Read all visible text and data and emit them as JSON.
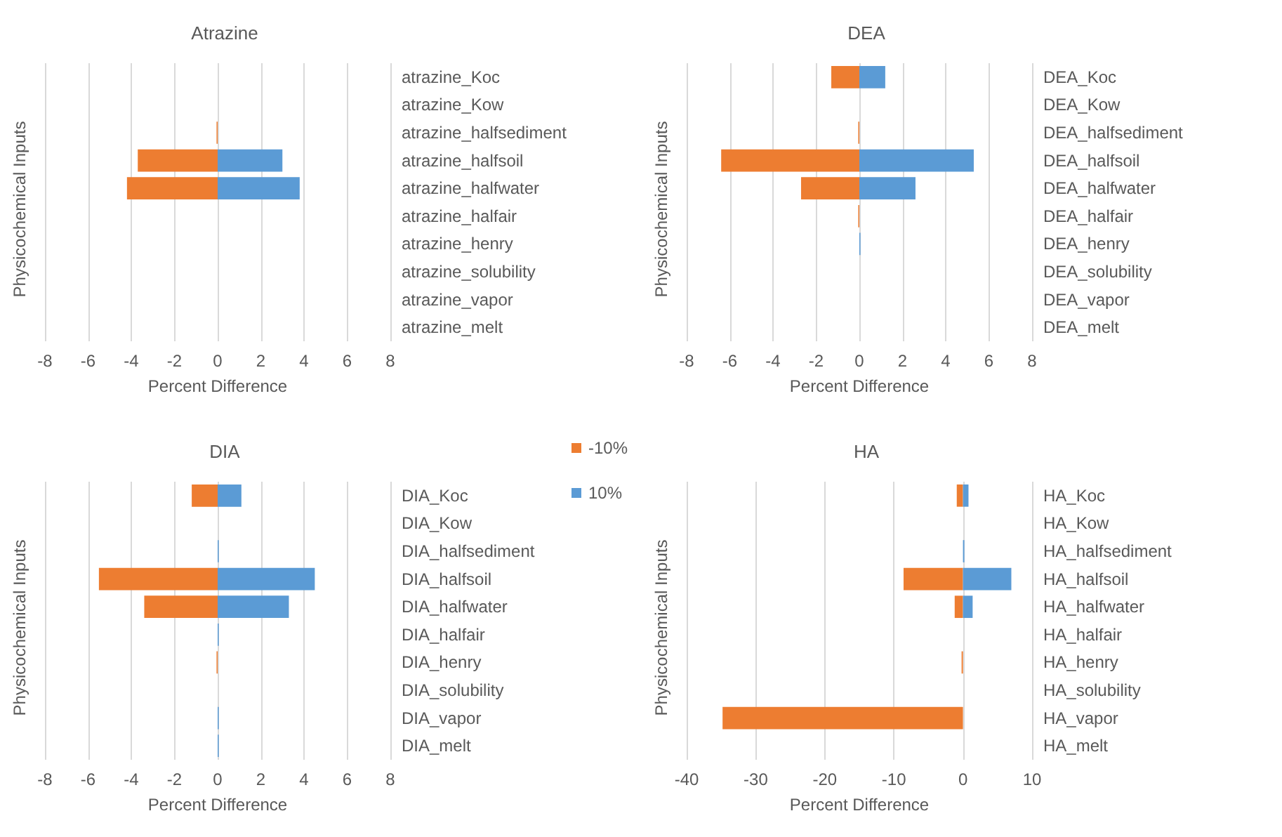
{
  "chart_data": [
    {
      "type": "bar",
      "orientation": "horizontal",
      "title": "Atrazine",
      "xlabel": "Percent Difference",
      "ylabel": "Physicochemical Inputs",
      "categories": [
        "atrazine_Koc",
        "atrazine_Kow",
        "atrazine_halfsediment",
        "atrazine_halfsoil",
        "atrazine_halfwater",
        "atrazine_halfair",
        "atrazine_henry",
        "atrazine_solubility",
        "atrazine_vapor",
        "atrazine_melt"
      ],
      "series": [
        {
          "color": "#ed7d31",
          "values": [
            0,
            0,
            -0.05,
            -3.7,
            -4.2,
            0,
            0,
            0,
            0,
            0
          ]
        },
        {
          "color": "#5b9bd5",
          "values": [
            0,
            0,
            0,
            3.0,
            3.8,
            0,
            0,
            0,
            0,
            0
          ]
        }
      ],
      "xlim": [
        -8,
        8
      ],
      "xticks": [
        -8,
        -6,
        -4,
        -2,
        0,
        2,
        4,
        6,
        8
      ],
      "grid": "x",
      "legend": false
    },
    {
      "type": "bar",
      "orientation": "horizontal",
      "title": "DEA",
      "xlabel": "Percent Difference",
      "ylabel": "Physicochemical Inputs",
      "categories": [
        "DEA_Koc",
        "DEA_Kow",
        "DEA_halfsediment",
        "DEA_halfsoil",
        "DEA_halfwater",
        "DEA_halfair",
        "DEA_henry",
        "DEA_solubility",
        "DEA_vapor",
        "DEA_melt"
      ],
      "series": [
        {
          "color": "#ed7d31",
          "values": [
            -1.3,
            0,
            -0.05,
            -6.4,
            -2.7,
            -0.05,
            0,
            0,
            0,
            0
          ]
        },
        {
          "color": "#5b9bd5",
          "values": [
            1.2,
            0,
            0,
            5.3,
            2.6,
            0,
            0.05,
            0,
            0,
            0
          ]
        }
      ],
      "xlim": [
        -8,
        8
      ],
      "xticks": [
        -8,
        -6,
        -4,
        -2,
        0,
        2,
        4,
        6,
        8
      ],
      "grid": "x",
      "legend": false
    },
    {
      "type": "bar",
      "orientation": "horizontal",
      "title": "DIA",
      "xlabel": "Percent Difference",
      "ylabel": "Physicochemical Inputs",
      "categories": [
        "DIA_Koc",
        "DIA_Kow",
        "DIA_halfsediment",
        "DIA_halfsoil",
        "DIA_halfwater",
        "DIA_halfair",
        "DIA_henry",
        "DIA_solubility",
        "DIA_vapor",
        "DIA_melt"
      ],
      "series": [
        {
          "name": "-10%",
          "color": "#ed7d31",
          "values": [
            -1.2,
            0,
            0,
            -5.5,
            -3.4,
            0,
            -0.05,
            0,
            0,
            0
          ]
        },
        {
          "name": "10%",
          "color": "#5b9bd5",
          "values": [
            1.1,
            0,
            0.05,
            4.5,
            3.3,
            0.05,
            0,
            0,
            0.05,
            0.05
          ]
        }
      ],
      "xlim": [
        -8,
        8
      ],
      "xticks": [
        -8,
        -6,
        -4,
        -2,
        0,
        2,
        4,
        6,
        8
      ],
      "grid": "x",
      "legend": "top right"
    },
    {
      "type": "bar",
      "orientation": "horizontal",
      "title": "HA",
      "xlabel": "Percent Difference",
      "ylabel": "Physicochemical Inputs",
      "categories": [
        "HA_Koc",
        "HA_Kow",
        "HA_halfsediment",
        "HA_halfsoil",
        "HA_halfwater",
        "HA_halfair",
        "HA_henry",
        "HA_solubility",
        "HA_vapor",
        "HA_melt"
      ],
      "series": [
        {
          "color": "#ed7d31",
          "values": [
            -0.9,
            0,
            0,
            -8.6,
            -1.2,
            0,
            -0.2,
            0,
            -34.8,
            0
          ]
        },
        {
          "color": "#5b9bd5",
          "values": [
            0.8,
            0,
            0.2,
            7.0,
            1.4,
            0,
            0,
            0,
            0,
            0
          ]
        }
      ],
      "xlim": [
        -40,
        10
      ],
      "xticks": [
        -40,
        -30,
        -20,
        -10,
        0,
        10
      ],
      "grid": "x",
      "legend": false
    }
  ]
}
